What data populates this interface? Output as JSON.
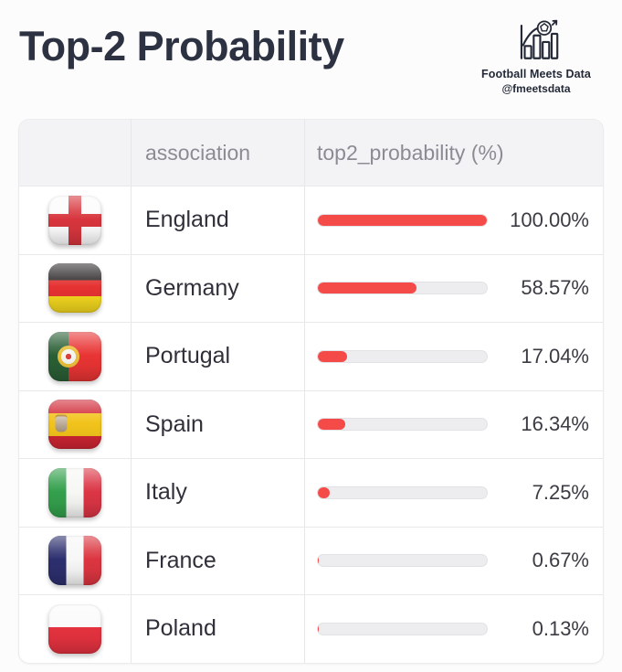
{
  "page": {
    "title": "Top-2 Probability",
    "background": "#fcfcfd",
    "title_color": "#2d3242",
    "brand": {
      "name": "Football Meets Data",
      "handle": "@fmeetsdata",
      "logo_icon": "bar-chart-football-arrow-icon",
      "color": "#232936"
    }
  },
  "table": {
    "header": {
      "flag_column": "",
      "association": "association",
      "probability": "top2_probability (%)"
    },
    "bar": {
      "track_color": "#ededf0",
      "fill_color": "#f44b49",
      "max_value": 100
    },
    "rows": [
      {
        "flag": "england",
        "association": "England",
        "value": 100.0,
        "display": "100.00%"
      },
      {
        "flag": "germany",
        "association": "Germany",
        "value": 58.57,
        "display": "58.57%"
      },
      {
        "flag": "portugal",
        "association": "Portugal",
        "value": 17.04,
        "display": "17.04%"
      },
      {
        "flag": "spain",
        "association": "Spain",
        "value": 16.34,
        "display": "16.34%"
      },
      {
        "flag": "italy",
        "association": "Italy",
        "value": 7.25,
        "display": "7.25%"
      },
      {
        "flag": "france",
        "association": "France",
        "value": 0.67,
        "display": "0.67%"
      },
      {
        "flag": "poland",
        "association": "Poland",
        "value": 0.13,
        "display": "0.13%"
      }
    ]
  },
  "chart_data": {
    "type": "bar",
    "categories": [
      "England",
      "Germany",
      "Portugal",
      "Spain",
      "Italy",
      "France",
      "Poland"
    ],
    "values": [
      100.0,
      58.57,
      17.04,
      16.34,
      7.25,
      0.67,
      0.13
    ],
    "value_labels": [
      "100.00%",
      "58.57%",
      "17.04%",
      "16.34%",
      "7.25%",
      "0.67%",
      "0.13%"
    ],
    "title": "Top-2 Probability",
    "xlabel": "association",
    "ylabel": "top2_probability (%)",
    "xlim": [
      0,
      100
    ],
    "orientation": "horizontal",
    "bar_color": "#f44b49",
    "legend": null,
    "grid": false
  }
}
